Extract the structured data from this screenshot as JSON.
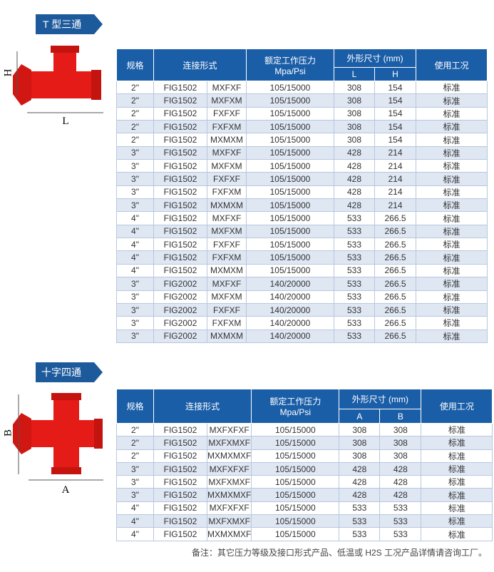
{
  "sections": [
    {
      "title": "T 型三通",
      "diagram": {
        "height_label": "H",
        "length_label": "L"
      },
      "table": {
        "header": {
          "spec": "规格",
          "connection": "连接形式",
          "pressure": "额定工作压力",
          "pressure_unit": "Mpa/Psi",
          "dims": "外形尺寸 (mm)",
          "dim1": "L",
          "dim2": "H",
          "condition": "使用工况"
        },
        "rows": [
          [
            "2\"",
            "FIG1502",
            "MXFXF",
            "105/15000",
            "308",
            "154",
            "标准"
          ],
          [
            "2\"",
            "FIG1502",
            "MXFXM",
            "105/15000",
            "308",
            "154",
            "标准"
          ],
          [
            "2\"",
            "FIG1502",
            "FXFXF",
            "105/15000",
            "308",
            "154",
            "标准"
          ],
          [
            "2\"",
            "FIG1502",
            "FXFXM",
            "105/15000",
            "308",
            "154",
            "标准"
          ],
          [
            "2\"",
            "FIG1502",
            "MXMXM",
            "105/15000",
            "308",
            "154",
            "标准"
          ],
          [
            "3\"",
            "FIG1502",
            "MXFXF",
            "105/15000",
            "428",
            "214",
            "标准"
          ],
          [
            "3\"",
            "FIG1502",
            "MXFXM",
            "105/15000",
            "428",
            "214",
            "标准"
          ],
          [
            "3\"",
            "FIG1502",
            "FXFXF",
            "105/15000",
            "428",
            "214",
            "标准"
          ],
          [
            "3\"",
            "FIG1502",
            "FXFXM",
            "105/15000",
            "428",
            "214",
            "标准"
          ],
          [
            "3\"",
            "FIG1502",
            "MXMXM",
            "105/15000",
            "428",
            "214",
            "标准"
          ],
          [
            "4\"",
            "FIG1502",
            "MXFXF",
            "105/15000",
            "533",
            "266.5",
            "标准"
          ],
          [
            "4\"",
            "FIG1502",
            "MXFXM",
            "105/15000",
            "533",
            "266.5",
            "标准"
          ],
          [
            "4\"",
            "FIG1502",
            "FXFXF",
            "105/15000",
            "533",
            "266.5",
            "标准"
          ],
          [
            "4\"",
            "FIG1502",
            "FXFXM",
            "105/15000",
            "533",
            "266.5",
            "标准"
          ],
          [
            "4\"",
            "FIG1502",
            "MXMXM",
            "105/15000",
            "533",
            "266.5",
            "标准"
          ],
          [
            "3\"",
            "FIG2002",
            "MXFXF",
            "140/20000",
            "533",
            "266.5",
            "标准"
          ],
          [
            "3\"",
            "FIG2002",
            "MXFXM",
            "140/20000",
            "533",
            "266.5",
            "标准"
          ],
          [
            "3\"",
            "FIG2002",
            "FXFXF",
            "140/20000",
            "533",
            "266.5",
            "标准"
          ],
          [
            "3\"",
            "FIG2002",
            "FXFXM",
            "140/20000",
            "533",
            "266.5",
            "标准"
          ],
          [
            "3\"",
            "FIG2002",
            "MXMXM",
            "140/20000",
            "533",
            "266.5",
            "标准"
          ]
        ]
      }
    },
    {
      "title": "十字四通",
      "diagram": {
        "height_label": "B",
        "length_label": "A"
      },
      "table": {
        "header": {
          "spec": "规格",
          "connection": "连接形式",
          "pressure": "额定工作压力",
          "pressure_unit": "Mpa/Psi",
          "dims": "外形尺寸 (mm)",
          "dim1": "A",
          "dim2": "B",
          "condition": "使用工况"
        },
        "rows": [
          [
            "2\"",
            "FIG1502",
            "MXFXFXF",
            "105/15000",
            "308",
            "308",
            "标准"
          ],
          [
            "2\"",
            "FIG1502",
            "MXFXMXF",
            "105/15000",
            "308",
            "308",
            "标准"
          ],
          [
            "2\"",
            "FIG1502",
            "MXMXMXF",
            "105/15000",
            "308",
            "308",
            "标准"
          ],
          [
            "3\"",
            "FIG1502",
            "MXFXFXF",
            "105/15000",
            "428",
            "428",
            "标准"
          ],
          [
            "3\"",
            "FIG1502",
            "MXFXMXF",
            "105/15000",
            "428",
            "428",
            "标准"
          ],
          [
            "3\"",
            "FIG1502",
            "MXMXMXF",
            "105/15000",
            "428",
            "428",
            "标准"
          ],
          [
            "4\"",
            "FIG1502",
            "MXFXFXF",
            "105/15000",
            "533",
            "533",
            "标准"
          ],
          [
            "4\"",
            "FIG1502",
            "MXFXMXF",
            "105/15000",
            "533",
            "533",
            "标准"
          ],
          [
            "4\"",
            "FIG1502",
            "MXMXMXF",
            "105/15000",
            "533",
            "533",
            "标准"
          ]
        ]
      }
    }
  ],
  "note": "备注：其它压力等级及接口形式产品、低温或 H2S 工况产品详情请咨询工厂。"
}
